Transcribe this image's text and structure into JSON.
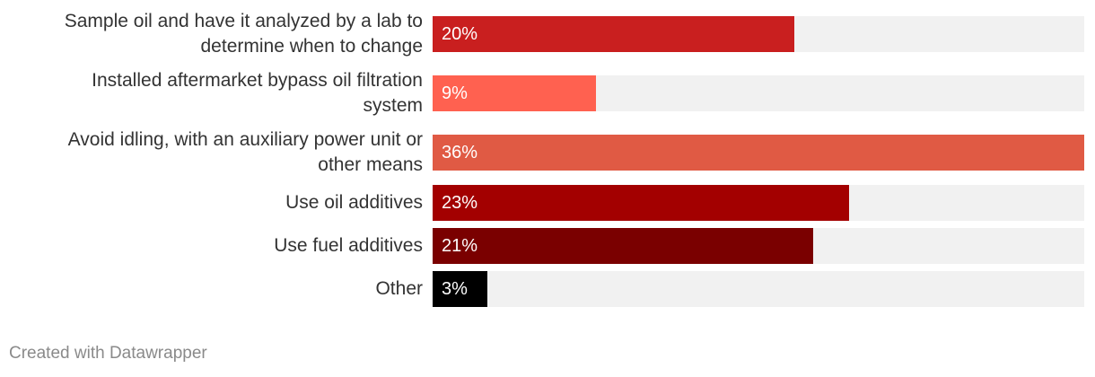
{
  "chart_data": {
    "type": "bar",
    "orientation": "horizontal",
    "title": "",
    "xlabel": "",
    "ylabel": "",
    "xlim": [
      0,
      36
    ],
    "grid": false,
    "categories": [
      "Sample oil and have it analyzed by a lab to determine when to change",
      "Installed aftermarket bypass oil filtration system",
      "Avoid idling, with an auxiliary power unit or other means",
      "Use oil additives",
      "Use fuel additives",
      "Other"
    ],
    "values": [
      20,
      9,
      36,
      23,
      21,
      3
    ],
    "value_labels": [
      "20%",
      "9%",
      "36%",
      "23%",
      "21%",
      "3%"
    ],
    "colors": [
      "#c91f1f",
      "#ff6150",
      "#e05a44",
      "#a30000",
      "#7a0000",
      "#000000"
    ],
    "label_lines": [
      [
        "Sample oil and have it analyzed by a lab to",
        "determine when to change"
      ],
      [
        "Installed aftermarket bypass oil filtration",
        "system"
      ],
      [
        "Avoid idling, with an auxiliary power unit or",
        "other means"
      ],
      [
        "Use oil additives"
      ],
      [
        "Use fuel additives"
      ],
      [
        "Other"
      ]
    ]
  },
  "footer": {
    "credit": "Created with Datawrapper"
  }
}
